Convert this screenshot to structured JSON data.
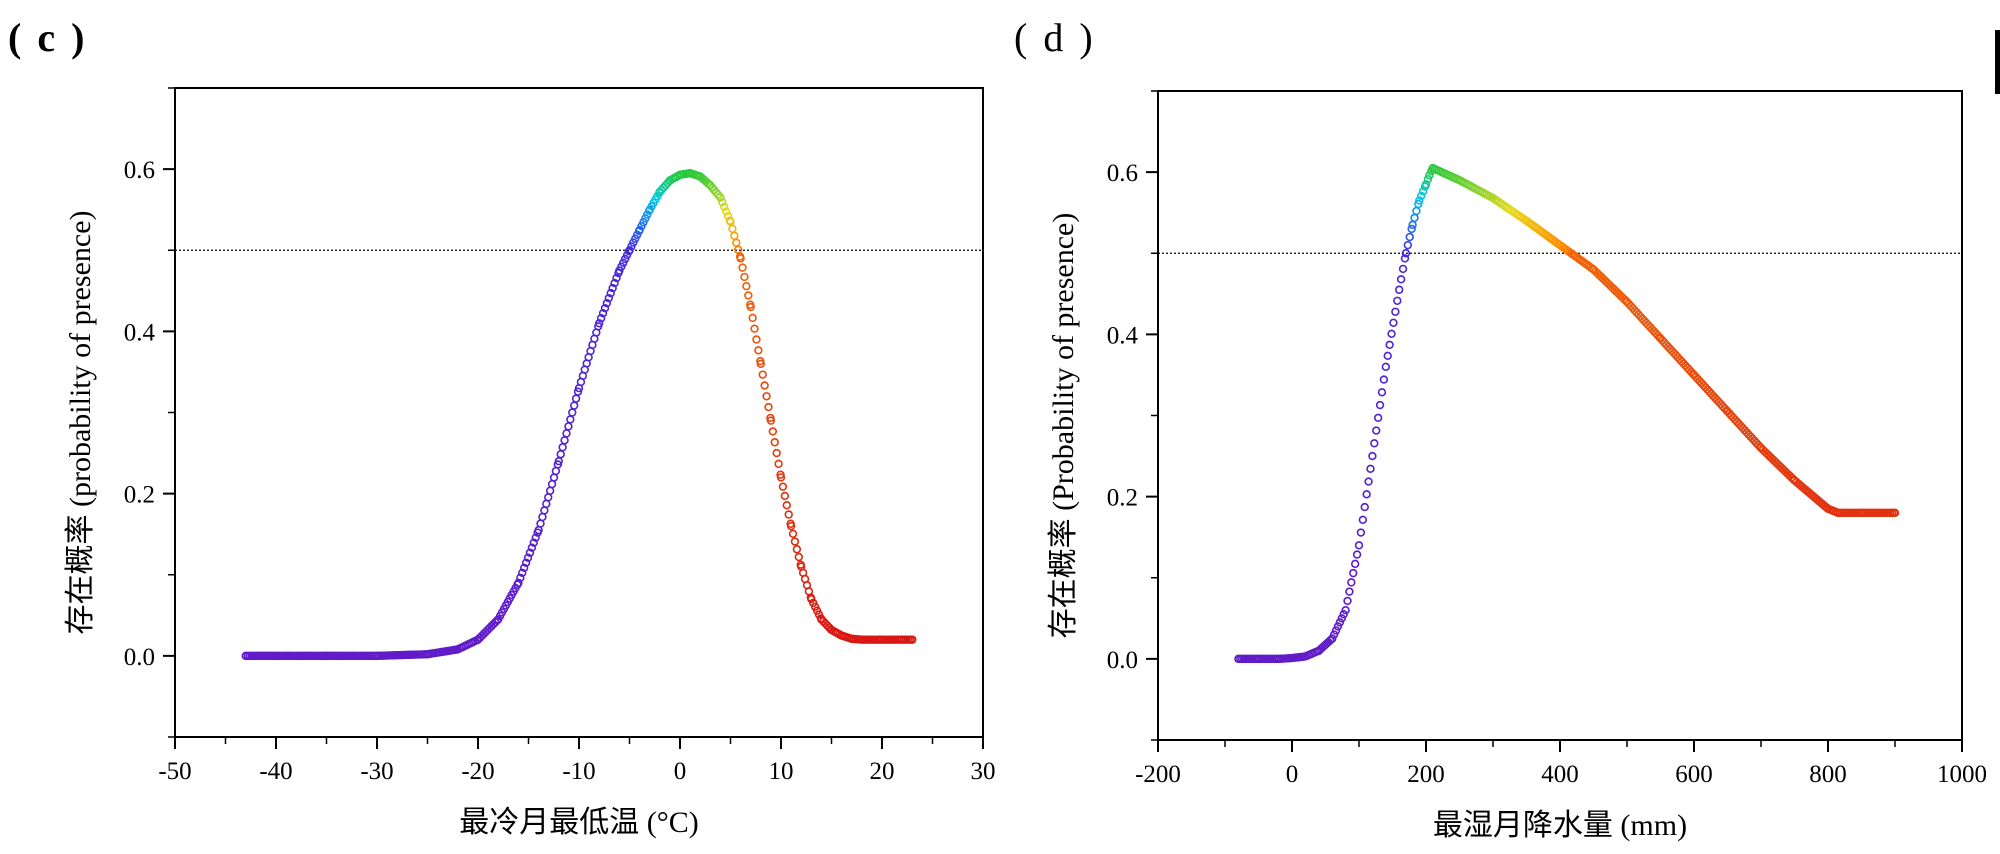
{
  "panels": {
    "c": {
      "label": "( c )"
    },
    "d": {
      "label": "( d )"
    }
  },
  "chart_data": [
    {
      "type": "scatter",
      "id": "c",
      "xlabel": "最冷月最低温 (°C)",
      "ylabel": "存在概率 (probability of presence)",
      "xlim": [
        -50,
        30
      ],
      "ylim": [
        -0.1,
        0.7
      ],
      "xticks": [
        -50,
        -40,
        -30,
        -20,
        -10,
        0,
        10,
        20,
        30
      ],
      "xtick_labels": [
        "-50",
        "-40",
        "-30",
        "-20",
        "-10",
        "0",
        "10",
        "20",
        "30"
      ],
      "yticks": [
        0.0,
        0.2,
        0.4,
        0.6
      ],
      "ytick_labels": [
        "0.0",
        "0.2",
        "0.4",
        "0.6"
      ],
      "threshold": 0.5,
      "grid": false,
      "color_scale": "rainbow (purple at low probability → red past the peak)",
      "x": [
        -43,
        -35,
        -30,
        -25,
        -22,
        -20,
        -18,
        -16,
        -14,
        -12,
        -10,
        -8,
        -6,
        -5,
        -4,
        -3,
        -2,
        -1,
        0,
        1,
        2,
        3,
        4,
        5,
        6,
        7,
        8,
        9,
        10,
        11,
        12,
        13,
        14,
        15,
        16,
        17,
        18,
        20,
        22,
        23
      ],
      "y": [
        0.0,
        0.0,
        0.0,
        0.002,
        0.008,
        0.02,
        0.045,
        0.09,
        0.155,
        0.24,
        0.33,
        0.41,
        0.475,
        0.5,
        0.525,
        0.55,
        0.572,
        0.586,
        0.593,
        0.595,
        0.591,
        0.58,
        0.565,
        0.535,
        0.49,
        0.43,
        0.36,
        0.29,
        0.22,
        0.16,
        0.11,
        0.07,
        0.045,
        0.032,
        0.025,
        0.021,
        0.02,
        0.02,
        0.02,
        0.02
      ]
    },
    {
      "type": "scatter",
      "id": "d",
      "xlabel": "最湿月降水量 (mm)",
      "ylabel": "存在概率 (Probability of presence)",
      "xlim": [
        -200,
        1000
      ],
      "ylim": [
        -0.1,
        0.7
      ],
      "xticks": [
        -200,
        0,
        200,
        400,
        600,
        800,
        1000
      ],
      "xtick_labels": [
        "-200",
        "0",
        "200",
        "400",
        "600",
        "800",
        "1000"
      ],
      "yticks": [
        0.0,
        0.2,
        0.4,
        0.6
      ],
      "ytick_labels": [
        "0.0",
        "0.2",
        "0.4",
        "0.6"
      ],
      "threshold": 0.5,
      "grid": false,
      "color_scale": "rainbow (purple at low probability → red past the peak)",
      "x": [
        -80,
        -50,
        -20,
        0,
        20,
        40,
        60,
        80,
        100,
        120,
        140,
        160,
        170,
        180,
        190,
        200,
        205,
        210,
        250,
        300,
        350,
        400,
        450,
        500,
        550,
        600,
        650,
        700,
        750,
        800,
        815,
        850,
        900
      ],
      "y": [
        0.0,
        0.0,
        0.0,
        0.001,
        0.003,
        0.01,
        0.025,
        0.06,
        0.14,
        0.25,
        0.36,
        0.455,
        0.5,
        0.535,
        0.565,
        0.585,
        0.596,
        0.605,
        0.59,
        0.568,
        0.54,
        0.51,
        0.48,
        0.44,
        0.395,
        0.35,
        0.305,
        0.26,
        0.22,
        0.185,
        0.18,
        0.18,
        0.18
      ]
    }
  ]
}
